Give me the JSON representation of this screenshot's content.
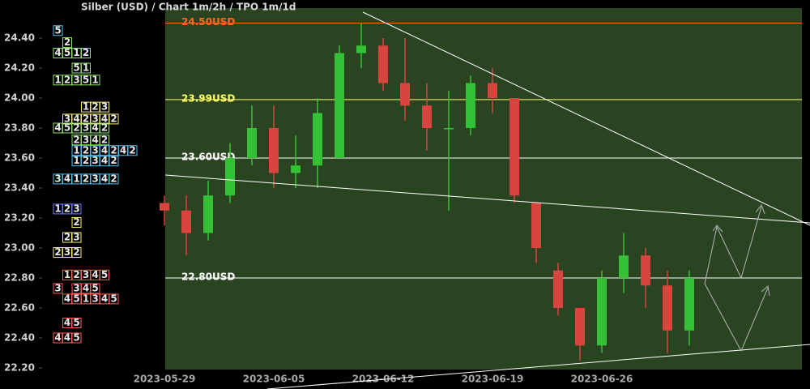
{
  "chart_data": {
    "type": "candlestick",
    "title": "Silber (USD) /  Chart 1m/2h / TPO 1m/1d",
    "x": [
      "2023-05-29",
      "2023-05-30",
      "2023-05-31",
      "2023-06-01",
      "2023-06-02",
      "2023-06-05",
      "2023-06-06",
      "2023-06-07",
      "2023-06-08",
      "2023-06-09",
      "2023-06-12",
      "2023-06-13",
      "2023-06-14",
      "2023-06-15",
      "2023-06-16",
      "2023-06-19",
      "2023-06-20",
      "2023-06-21",
      "2023-06-22",
      "2023-06-23",
      "2023-06-26",
      "2023-06-27",
      "2023-06-28",
      "2023-06-29",
      "2023-06-30"
    ],
    "open": [
      23.3,
      23.25,
      23.1,
      23.35,
      23.6,
      23.8,
      23.5,
      23.55,
      23.6,
      24.3,
      24.35,
      24.1,
      23.95,
      23.8,
      23.8,
      24.1,
      24.0,
      23.3,
      22.85,
      22.6,
      22.35,
      22.8,
      22.95,
      22.75,
      22.45
    ],
    "high": [
      23.35,
      23.35,
      23.45,
      23.7,
      23.95,
      23.95,
      23.75,
      24.0,
      24.35,
      24.5,
      24.4,
      24.4,
      24.1,
      24.05,
      24.15,
      24.2,
      24.0,
      23.3,
      22.9,
      22.6,
      22.85,
      23.1,
      23.0,
      22.85,
      22.85
    ],
    "low": [
      23.15,
      22.95,
      23.05,
      23.3,
      23.55,
      23.4,
      23.4,
      23.4,
      23.6,
      24.2,
      24.05,
      23.85,
      23.65,
      23.25,
      23.75,
      23.9,
      23.3,
      22.9,
      22.55,
      22.25,
      22.3,
      22.7,
      22.6,
      22.3,
      22.35
    ],
    "close": [
      23.25,
      23.1,
      23.35,
      23.6,
      23.8,
      23.5,
      23.55,
      23.9,
      24.3,
      24.35,
      24.1,
      23.95,
      23.8,
      23.8,
      24.1,
      24.0,
      23.35,
      23.0,
      22.6,
      22.35,
      22.8,
      22.95,
      22.75,
      22.45,
      22.8
    ],
    "colors": {
      "up": "#35c135",
      "down": "#d8443e"
    },
    "ylim": [
      22.2,
      24.6
    ],
    "yticks": [
      {
        "value": 22.2,
        "label": "22.20"
      },
      {
        "value": 22.4,
        "label": "22.40"
      },
      {
        "value": 22.6,
        "label": "22.60"
      },
      {
        "value": 22.8,
        "label": "22.80"
      },
      {
        "value": 23.0,
        "label": "23.00"
      },
      {
        "value": 23.2,
        "label": "23.20"
      },
      {
        "value": 23.4,
        "label": "23.40"
      },
      {
        "value": 23.6,
        "label": "23.60"
      },
      {
        "value": 23.8,
        "label": "23.80"
      },
      {
        "value": 24.0,
        "label": "24.00"
      },
      {
        "value": 24.2,
        "label": "24.20"
      },
      {
        "value": 24.4,
        "label": "24.40"
      }
    ],
    "xticks": [
      "2023-05-29",
      "2023-06-05",
      "2023-06-12",
      "2023-06-19",
      "2023-06-26"
    ],
    "levels": [
      {
        "value": 24.5,
        "label": "24.50USD",
        "color": "#ff6a1a"
      },
      {
        "value": 23.99,
        "label": "23.99USD",
        "color": "#ffff66"
      },
      {
        "value": 23.6,
        "label": "23.60USD",
        "color": "#ffffff"
      },
      {
        "value": 22.8,
        "label": "22.80USD",
        "color": "#ffffff"
      }
    ],
    "tpo": {
      "rows": [
        {
          "price": 24.45,
          "color": "#4fc3f7",
          "letters": [
            "5"
          ]
        },
        {
          "price": 24.37,
          "color": "#8fe36b",
          "letters": [
            "",
            "2"
          ]
        },
        {
          "price": 24.3,
          "color": "#8fe36b",
          "letters": [
            "4",
            "5",
            "1",
            "2"
          ]
        },
        {
          "price": 24.2,
          "color": "#8fe36b",
          "letters": [
            "",
            "",
            "5",
            "1"
          ]
        },
        {
          "price": 24.12,
          "color": "#8fe36b",
          "letters": [
            "1",
            "2",
            "3",
            "5",
            "1"
          ]
        },
        {
          "price": 23.94,
          "color": "#fff176",
          "letters": [
            "",
            "",
            "",
            "1",
            "2",
            "3"
          ]
        },
        {
          "price": 23.86,
          "color": "#fff176",
          "letters": [
            "",
            "3",
            "4",
            "2",
            "3",
            "4",
            "2"
          ]
        },
        {
          "price": 23.8,
          "color": "#8fe36b",
          "letters": [
            "4",
            "5",
            "2",
            "3",
            "4",
            "2"
          ]
        },
        {
          "price": 23.72,
          "color": "#8fe36b",
          "letters": [
            "",
            "",
            "2",
            "3",
            "4",
            "2"
          ]
        },
        {
          "price": 23.65,
          "color": "#4fc3f7",
          "letters": [
            "",
            "",
            "1",
            "2",
            "3",
            "4",
            "2",
            "4",
            "2"
          ]
        },
        {
          "price": 23.58,
          "color": "#4fc3f7",
          "letters": [
            "",
            "",
            "1",
            "2",
            "3",
            "4",
            "2"
          ]
        },
        {
          "price": 23.46,
          "color": "#4fc3f7",
          "letters": [
            "3",
            "4",
            "1",
            "2",
            "3",
            "4",
            "2"
          ]
        },
        {
          "price": 23.26,
          "color": "#6a7cff",
          "letters": [
            "1",
            "2",
            "3"
          ]
        },
        {
          "price": 23.17,
          "color": "#fff176",
          "letters": [
            "",
            "",
            "2"
          ]
        },
        {
          "price": 23.07,
          "color": "#fff176",
          "letters": [
            "",
            "2",
            "3"
          ]
        },
        {
          "price": 22.97,
          "color": "#fff176",
          "letters": [
            "2",
            "3",
            "2"
          ]
        },
        {
          "price": 22.82,
          "color": "#ff5c5c",
          "letters": [
            "",
            "1",
            "2",
            "3",
            "4",
            "5"
          ]
        },
        {
          "price": 22.73,
          "color": "#ff5c5c",
          "letters": [
            "3",
            "",
            "3",
            "4",
            "5"
          ]
        },
        {
          "price": 22.66,
          "color": "#ff5c5c",
          "letters": [
            "",
            "4",
            "5",
            "1",
            "3",
            "4",
            "5"
          ]
        },
        {
          "price": 22.5,
          "color": "#ff5c5c",
          "letters": [
            "",
            "4",
            "5"
          ]
        },
        {
          "price": 22.4,
          "color": "#ff5c5c",
          "letters": [
            "4",
            "4",
            "5"
          ]
        }
      ]
    }
  }
}
